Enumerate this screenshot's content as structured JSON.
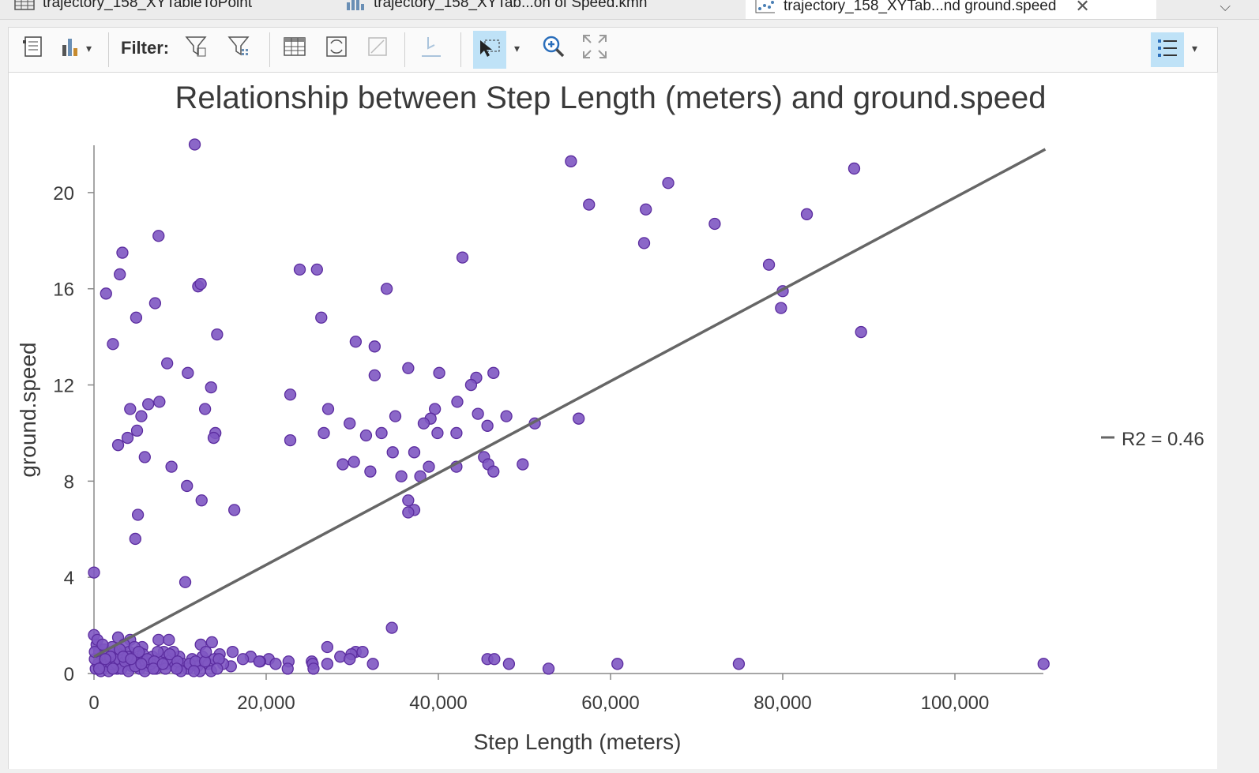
{
  "tabs": [
    {
      "label": "trajectory_158_XYTableToPoint",
      "icon": "table-icon"
    },
    {
      "label": "trajectory_158_XYTab...on of Speed.kmh",
      "icon": "histogram-icon"
    },
    {
      "label": "trajectory_158_XYTab...nd ground.speed",
      "icon": "scatter-chart-icon",
      "active": true
    }
  ],
  "toolbar": {
    "filter_label": "Filter:"
  },
  "colors": {
    "point": "#7e57c2",
    "point_stroke": "#5b2c9f",
    "trend": "#666666",
    "selected_button": "#bfe2f7"
  },
  "chart_data": {
    "type": "scatter",
    "title": "Relationship between Step Length (meters) and ground.speed",
    "xlabel": "Step Length (meters)",
    "ylabel": "ground.speed",
    "xlim": [
      0,
      110000
    ],
    "ylim": [
      0,
      22
    ],
    "xticks": [
      0,
      20000,
      40000,
      60000,
      80000,
      100000
    ],
    "xtick_labels": [
      "0",
      "20,000",
      "40,000",
      "60,000",
      "80,000",
      "100,000"
    ],
    "yticks": [
      0,
      4,
      8,
      12,
      16,
      20
    ],
    "ytick_labels": [
      "0",
      "4",
      "8",
      "12",
      "16",
      "20"
    ],
    "trendline": {
      "x": [
        0,
        110500
      ],
      "y": [
        0.7,
        21.8
      ]
    },
    "legend": {
      "label": "R2 = 0.46",
      "position": "right"
    },
    "points": [
      [
        11700,
        22.0
      ],
      [
        55400,
        21.3
      ],
      [
        88300,
        21.0
      ],
      [
        66700,
        20.4
      ],
      [
        57500,
        19.5
      ],
      [
        64100,
        19.3
      ],
      [
        82800,
        19.1
      ],
      [
        72100,
        18.7
      ],
      [
        7500,
        18.2
      ],
      [
        63900,
        17.9
      ],
      [
        3300,
        17.5
      ],
      [
        42800,
        17.3
      ],
      [
        78400,
        17.0
      ],
      [
        23900,
        16.8
      ],
      [
        25900,
        16.8
      ],
      [
        3000,
        16.6
      ],
      [
        12100,
        16.1
      ],
      [
        12400,
        16.2
      ],
      [
        34000,
        16.0
      ],
      [
        1400,
        15.8
      ],
      [
        80000,
        15.9
      ],
      [
        7100,
        15.4
      ],
      [
        79800,
        15.2
      ],
      [
        4900,
        14.8
      ],
      [
        26400,
        14.8
      ],
      [
        89100,
        14.2
      ],
      [
        14300,
        14.1
      ],
      [
        30400,
        13.8
      ],
      [
        2200,
        13.7
      ],
      [
        32600,
        13.6
      ],
      [
        8500,
        12.9
      ],
      [
        10900,
        12.5
      ],
      [
        36500,
        12.7
      ],
      [
        40100,
        12.5
      ],
      [
        46400,
        12.5
      ],
      [
        32600,
        12.4
      ],
      [
        44400,
        12.3
      ],
      [
        43800,
        12.0
      ],
      [
        13600,
        11.9
      ],
      [
        22800,
        11.6
      ],
      [
        7600,
        11.3
      ],
      [
        42200,
        11.3
      ],
      [
        6300,
        11.2
      ],
      [
        4200,
        11.0
      ],
      [
        12900,
        11.0
      ],
      [
        27200,
        11.0
      ],
      [
        39600,
        11.0
      ],
      [
        5500,
        10.7
      ],
      [
        35000,
        10.7
      ],
      [
        44600,
        10.8
      ],
      [
        47900,
        10.7
      ],
      [
        56300,
        10.6
      ],
      [
        39100,
        10.6
      ],
      [
        51200,
        10.4
      ],
      [
        29700,
        10.4
      ],
      [
        38300,
        10.4
      ],
      [
        45700,
        10.3
      ],
      [
        5000,
        10.1
      ],
      [
        14100,
        10.0
      ],
      [
        26700,
        10.0
      ],
      [
        31600,
        9.9
      ],
      [
        33400,
        10.0
      ],
      [
        39900,
        10.0
      ],
      [
        42100,
        10.0
      ],
      [
        3900,
        9.8
      ],
      [
        13900,
        9.8
      ],
      [
        2800,
        9.5
      ],
      [
        22800,
        9.7
      ],
      [
        34700,
        9.2
      ],
      [
        37200,
        9.2
      ],
      [
        45300,
        9.0
      ],
      [
        5900,
        9.0
      ],
      [
        28900,
        8.7
      ],
      [
        30200,
        8.8
      ],
      [
        45800,
        8.7
      ],
      [
        49800,
        8.7
      ],
      [
        9000,
        8.6
      ],
      [
        38900,
        8.6
      ],
      [
        42100,
        8.6
      ],
      [
        46400,
        8.4
      ],
      [
        32100,
        8.4
      ],
      [
        35700,
        8.2
      ],
      [
        37900,
        8.2
      ],
      [
        10800,
        7.8
      ],
      [
        12500,
        7.2
      ],
      [
        36500,
        7.2
      ],
      [
        16300,
        6.8
      ],
      [
        37200,
        6.8
      ],
      [
        36500,
        6.7
      ],
      [
        5100,
        6.6
      ],
      [
        4800,
        5.6
      ],
      [
        0,
        4.2
      ],
      [
        10600,
        3.8
      ],
      [
        34600,
        1.9
      ],
      [
        0,
        1.6
      ],
      [
        2800,
        1.5
      ],
      [
        4200,
        1.4
      ],
      [
        7500,
        1.4
      ],
      [
        8700,
        1.4
      ],
      [
        13700,
        1.3
      ],
      [
        12400,
        1.2
      ],
      [
        27100,
        1.1
      ],
      [
        5600,
        1.1
      ],
      [
        30400,
        0.9
      ],
      [
        31200,
        0.9
      ],
      [
        16100,
        0.9
      ],
      [
        14600,
        0.8
      ],
      [
        18200,
        0.7
      ],
      [
        20300,
        0.6
      ],
      [
        17300,
        0.6
      ],
      [
        19300,
        0.5
      ],
      [
        22600,
        0.5
      ],
      [
        25300,
        0.5
      ],
      [
        28600,
        0.7
      ],
      [
        29900,
        0.8
      ],
      [
        29700,
        0.6
      ],
      [
        45700,
        0.6
      ],
      [
        46500,
        0.6
      ],
      [
        48200,
        0.4
      ],
      [
        60800,
        0.4
      ],
      [
        74900,
        0.4
      ],
      [
        110300,
        0.4
      ],
      [
        32400,
        0.4
      ],
      [
        25400,
        0.4
      ],
      [
        27100,
        0.4
      ],
      [
        21100,
        0.4
      ],
      [
        19200,
        0.5
      ],
      [
        52800,
        0.2
      ],
      [
        22500,
        0.2
      ],
      [
        25500,
        0.2
      ],
      [
        15900,
        0.3
      ],
      [
        300,
        1.2
      ],
      [
        600,
        0.9
      ],
      [
        900,
        0.7
      ],
      [
        1200,
        1.0
      ],
      [
        1500,
        0.5
      ],
      [
        1800,
        0.3
      ],
      [
        2100,
        1.1
      ],
      [
        2400,
        0.6
      ],
      [
        2700,
        0.2
      ],
      [
        3100,
        0.8
      ],
      [
        3500,
        1.2
      ],
      [
        3800,
        0.4
      ],
      [
        4100,
        0.9
      ],
      [
        4400,
        0.3
      ],
      [
        4700,
        1.1
      ],
      [
        5000,
        0.6
      ],
      [
        5300,
        0.2
      ],
      [
        5700,
        0.8
      ],
      [
        6000,
        0.5
      ],
      [
        6400,
        0.3
      ],
      [
        6800,
        0.7
      ],
      [
        7200,
        0.2
      ],
      [
        7700,
        0.6
      ],
      [
        8100,
        0.9
      ],
      [
        8500,
        0.4
      ],
      [
        9000,
        0.6
      ],
      [
        9400,
        0.3
      ],
      [
        9900,
        0.7
      ],
      [
        10300,
        0.4
      ],
      [
        10900,
        0.2
      ],
      [
        11400,
        0.6
      ],
      [
        12000,
        0.3
      ],
      [
        12600,
        0.7
      ],
      [
        13300,
        0.4
      ],
      [
        14000,
        0.6
      ],
      [
        15000,
        0.4
      ],
      [
        200,
        0.2
      ],
      [
        500,
        0.4
      ],
      [
        800,
        0.1
      ],
      [
        1100,
        0.3
      ],
      [
        1400,
        0.8
      ],
      [
        1700,
        0.1
      ],
      [
        2000,
        0.4
      ],
      [
        2300,
        0.9
      ],
      [
        2600,
        0.4
      ],
      [
        2900,
        0.6
      ],
      [
        3200,
        0.2
      ],
      [
        3600,
        0.5
      ],
      [
        4000,
        0.1
      ],
      [
        4600,
        0.5
      ],
      [
        5200,
        0.9
      ],
      [
        5900,
        0.1
      ],
      [
        6600,
        0.4
      ],
      [
        7400,
        0.9
      ],
      [
        8300,
        0.2
      ],
      [
        9200,
        0.9
      ],
      [
        10100,
        0.1
      ],
      [
        11100,
        0.4
      ],
      [
        12300,
        0.1
      ],
      [
        13600,
        0.1
      ],
      [
        100,
        0.6
      ],
      [
        100,
        0.9
      ],
      [
        400,
        1.4
      ],
      [
        1000,
        1.2
      ],
      [
        1900,
        0.7
      ],
      [
        3000,
        1.0
      ],
      [
        3900,
        0.7
      ],
      [
        4800,
        0.3
      ],
      [
        6200,
        0.6
      ],
      [
        7000,
        0.5
      ],
      [
        8800,
        0.8
      ],
      [
        9700,
        0.5
      ],
      [
        11800,
        0.5
      ],
      [
        12900,
        0.5
      ],
      [
        14500,
        0.6
      ],
      [
        600,
        0.2
      ],
      [
        1300,
        0.6
      ],
      [
        2200,
        0.2
      ],
      [
        3400,
        0.7
      ],
      [
        4300,
        0.6
      ],
      [
        5500,
        0.4
      ],
      [
        6900,
        0.2
      ],
      [
        8000,
        0.4
      ],
      [
        9600,
        0.2
      ],
      [
        11600,
        0.1
      ],
      [
        13000,
        0.9
      ],
      [
        14300,
        0.2
      ]
    ]
  }
}
